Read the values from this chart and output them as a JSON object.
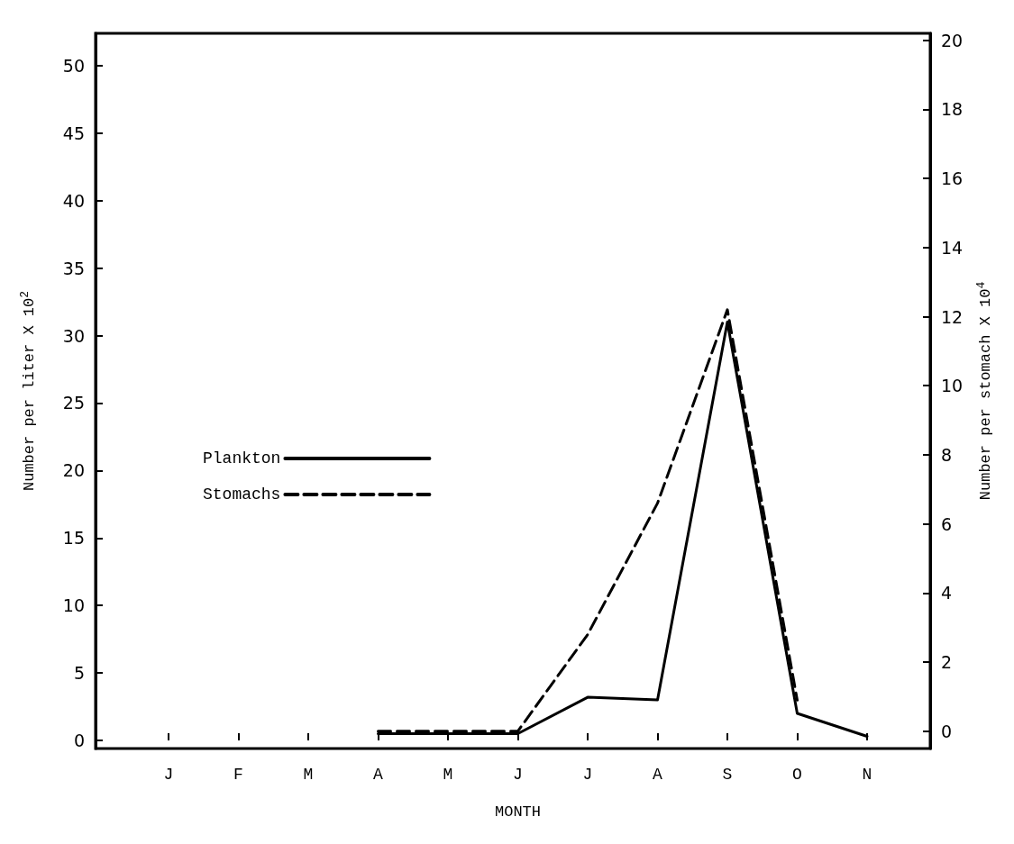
{
  "chart_data": {
    "type": "line",
    "categories": [
      "J",
      "F",
      "M",
      "A",
      "M",
      "J",
      "J",
      "A",
      "S",
      "O",
      "N"
    ],
    "series": [
      {
        "name": "Plankton",
        "color": "#000000",
        "line_style": "solid",
        "values": [
          null,
          null,
          null,
          0.5,
          0.5,
          0.5,
          3.2,
          3.0,
          31.0,
          2.0,
          0.3
        ]
      },
      {
        "name": "Stomachs",
        "color": "#000000",
        "line_style": "dashed",
        "axis": "y2",
        "values": [
          null,
          null,
          null,
          0,
          0,
          0,
          2.8,
          6.6,
          12.2,
          0.9,
          null
        ]
      }
    ],
    "xlabel": "MONTH",
    "ylabel": "Number per liter X 10$^{2}$",
    "y2label": "Number per stomach X 10$^{4}$",
    "ylim": [
      -0.6,
      52.4
    ],
    "yticks": [
      0,
      5,
      10,
      15,
      20,
      25,
      30,
      35,
      40,
      45,
      50
    ],
    "y2lim": [
      -0.5,
      20.2
    ],
    "y2ticks": [
      0,
      2,
      4,
      6,
      8,
      10,
      12,
      14,
      16,
      18,
      20
    ],
    "legend": "left",
    "marker": "none",
    "grid": false
  }
}
